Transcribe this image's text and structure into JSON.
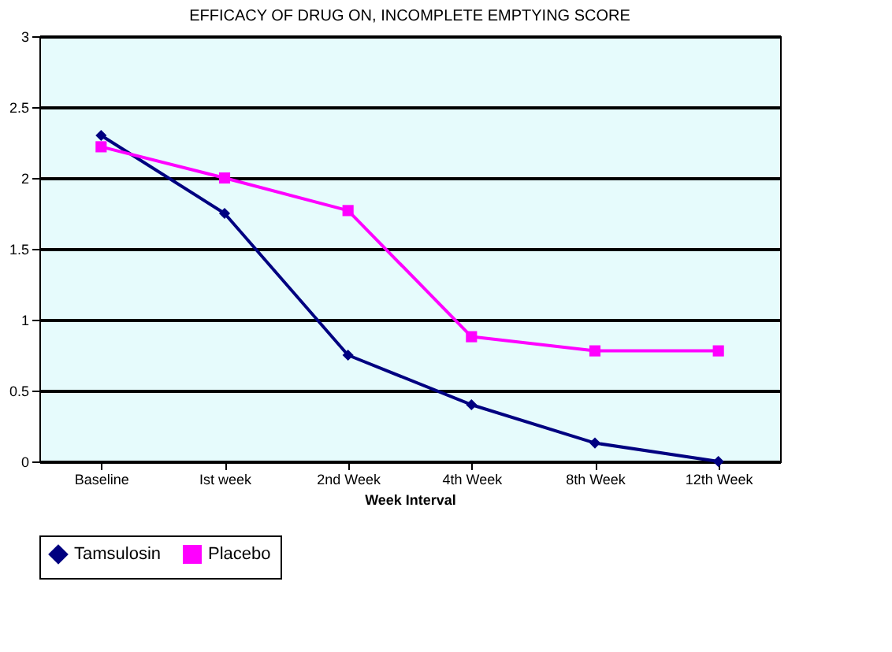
{
  "chart_data": {
    "type": "line",
    "title": "EFFICACY OF DRUG ON, INCOMPLETE EMPTYING SCORE",
    "xlabel": "Week Interval",
    "categories": [
      "Baseline",
      "Ist week",
      "2nd Week",
      "4th Week",
      "8th Week",
      "12th Week"
    ],
    "series": [
      {
        "name": "Tamsulosin",
        "color": "#000080",
        "marker": "diamond",
        "values": [
          2.3,
          1.75,
          0.75,
          0.4,
          0.13,
          0.0
        ]
      },
      {
        "name": "Placebo",
        "color": "#ff00ff",
        "marker": "square",
        "values": [
          2.22,
          2.0,
          1.77,
          0.88,
          0.78,
          0.78
        ]
      }
    ],
    "ylim": [
      0,
      3
    ],
    "yticks": [
      0,
      0.5,
      1,
      1.5,
      2,
      2.5,
      3
    ],
    "grid": "y",
    "legend": "bottom"
  }
}
